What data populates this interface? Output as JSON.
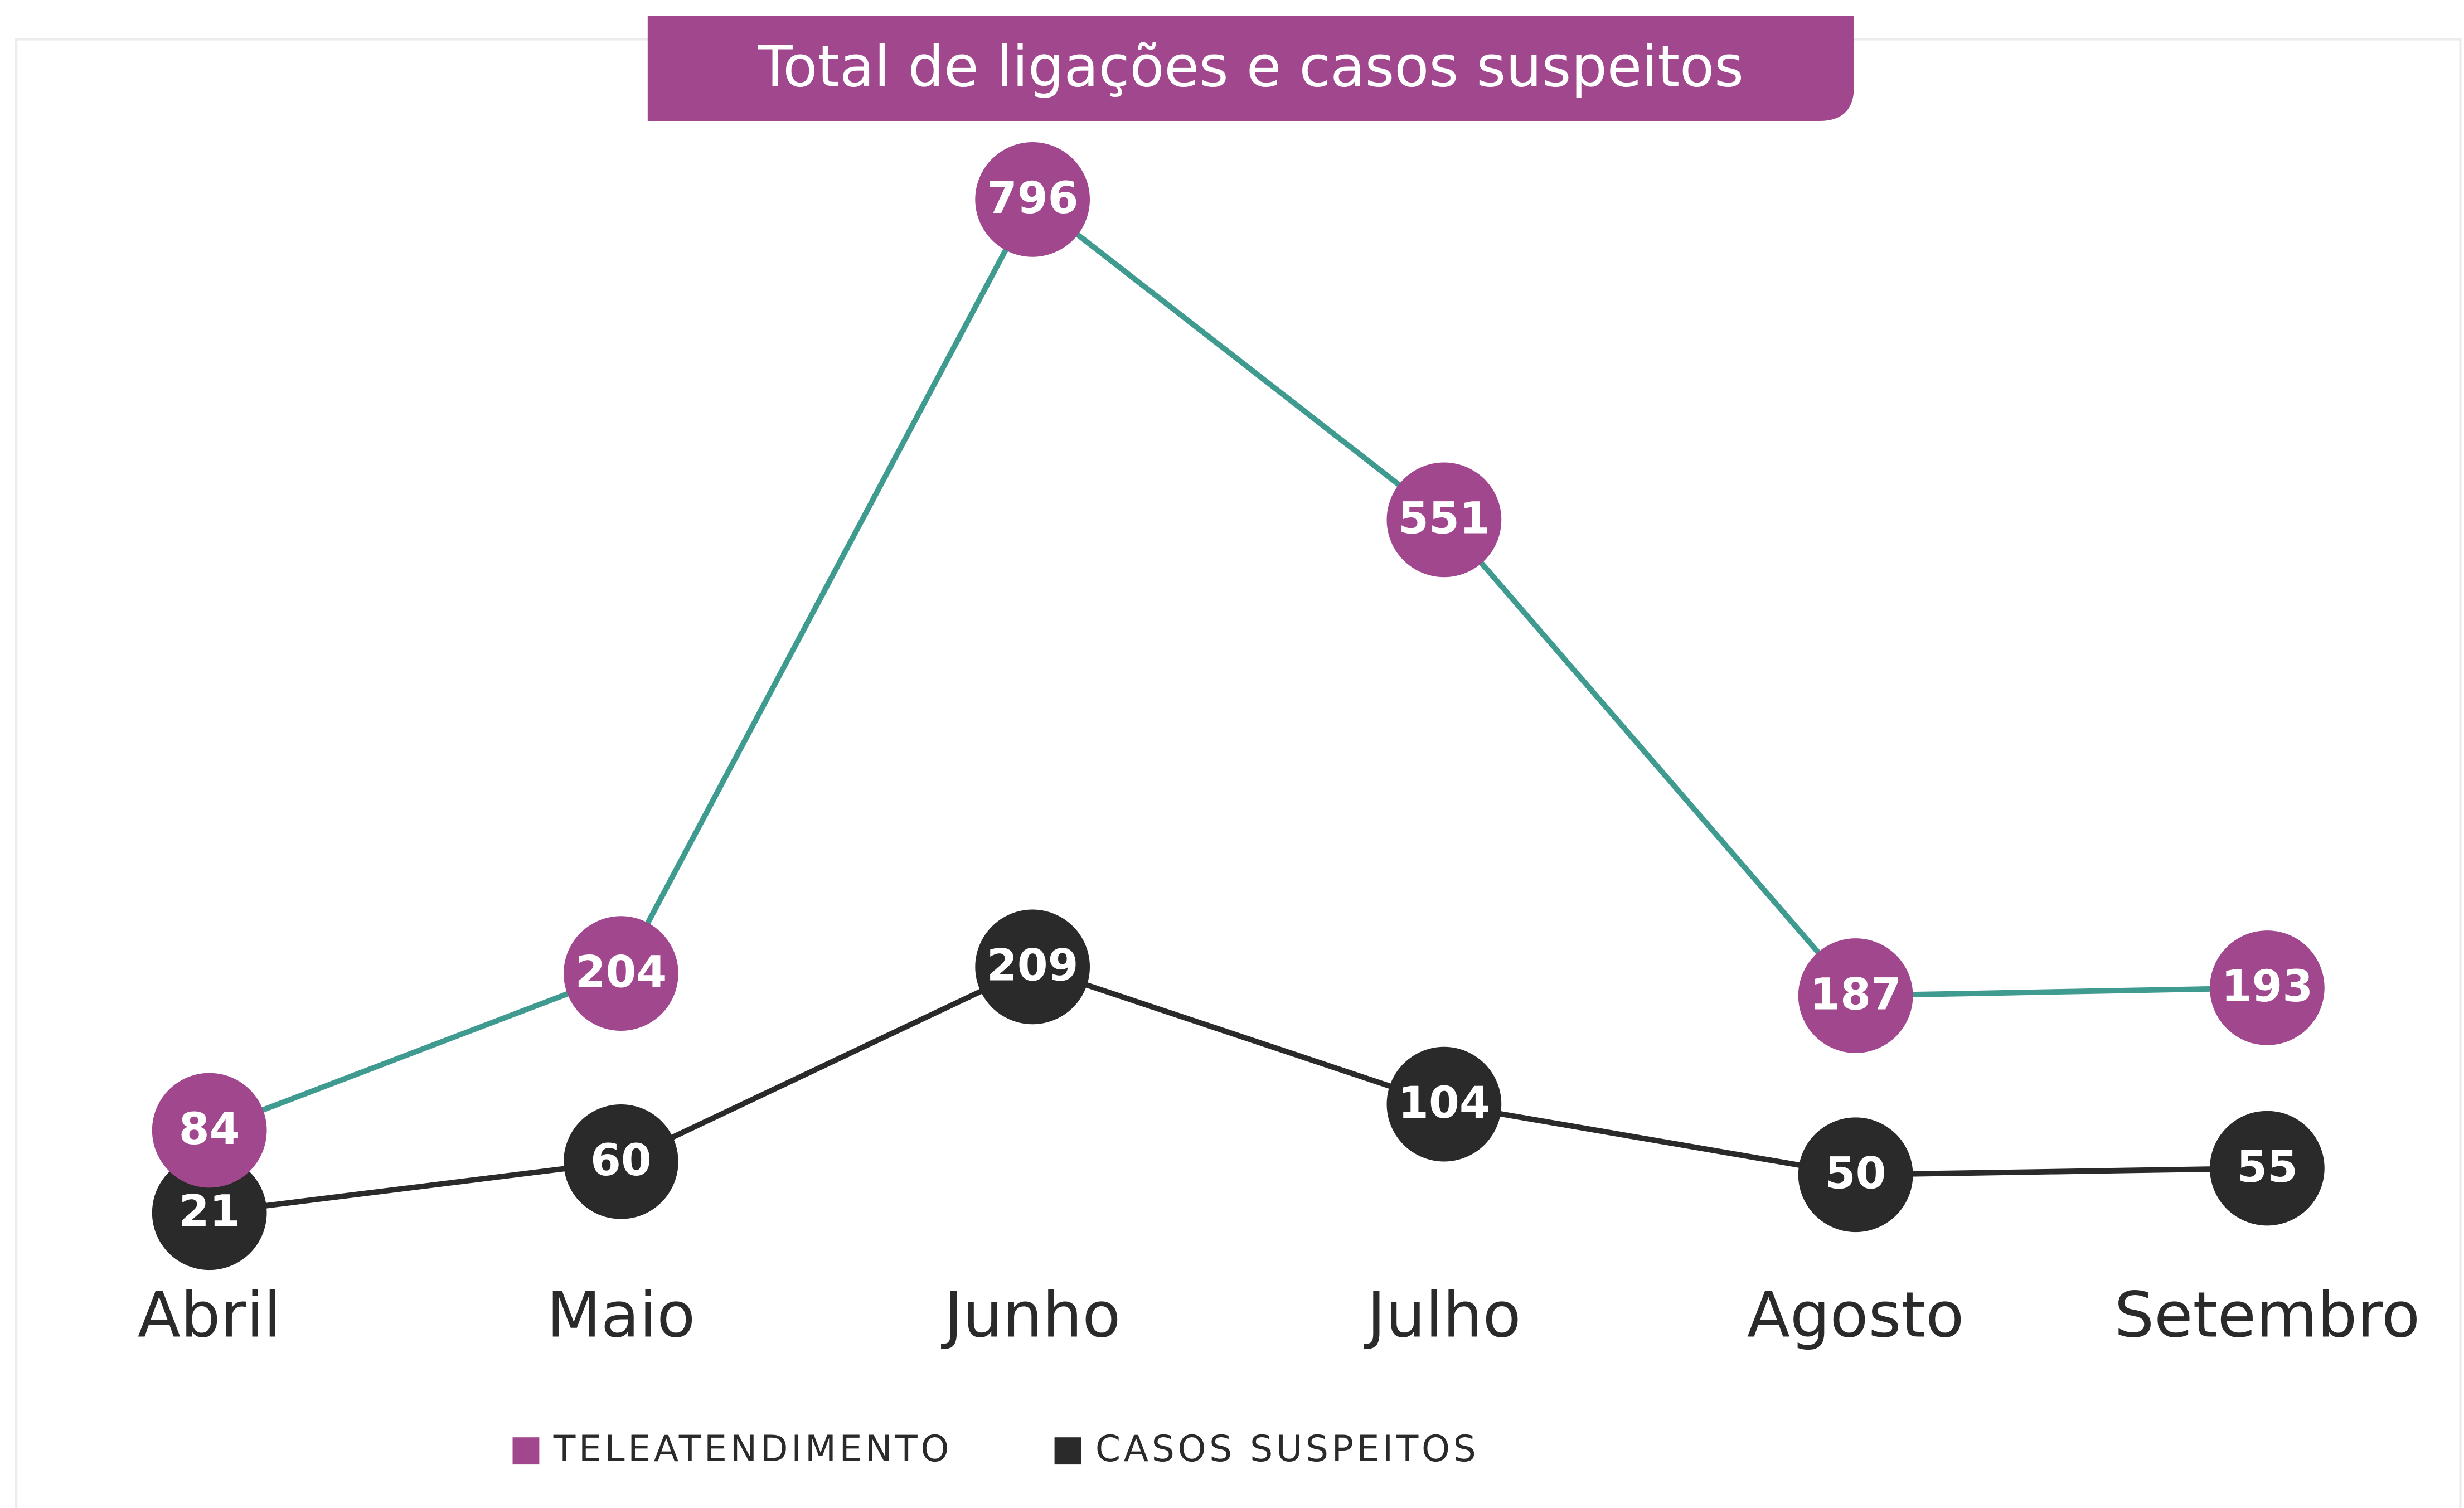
{
  "chart_data": {
    "type": "line",
    "title": "Total de ligações e casos suspeitos",
    "categories": [
      "Abril",
      "Maio",
      "Junho",
      "Julho",
      "Agosto",
      "Setembro"
    ],
    "series": [
      {
        "name": "TELEATENDIMENTO",
        "color": "#a0478e",
        "line_color": "#3f9a8f",
        "values": [
          84,
          204,
          796,
          551,
          187,
          193
        ]
      },
      {
        "name": "CASOS SUSPEITOS",
        "color": "#2a2a2a",
        "line_color": "#2a2a2a",
        "values": [
          21,
          60,
          209,
          104,
          50,
          55
        ]
      }
    ],
    "legend": "bottom"
  }
}
